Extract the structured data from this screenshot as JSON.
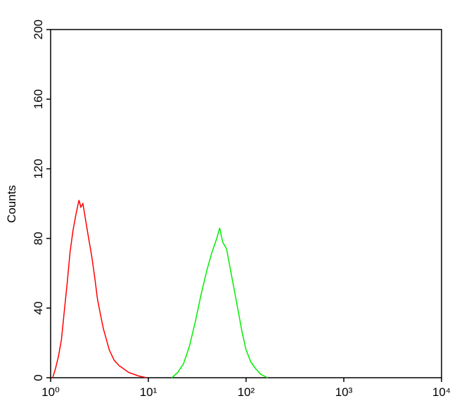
{
  "chart_data": {
    "type": "histogram-line",
    "y_label": "Counts",
    "xscale": "log",
    "xlim": [
      1,
      10000
    ],
    "xticks": [
      {
        "value": 1,
        "label": "10⁰"
      },
      {
        "value": 10,
        "label": "10¹"
      },
      {
        "value": 100,
        "label": "10²"
      },
      {
        "value": 1000,
        "label": "10³"
      },
      {
        "value": 10000,
        "label": "10⁴"
      }
    ],
    "ylim": [
      0,
      200
    ],
    "yticks": [
      0,
      40,
      80,
      120,
      160,
      200
    ],
    "series": [
      {
        "color": "#ff0000",
        "x": [
          1.05,
          1.12,
          1.2,
          1.29,
          1.38,
          1.48,
          1.58,
          1.7,
          1.82,
          1.95,
          2.04,
          2.14,
          2.29,
          2.45,
          2.63,
          2.82,
          3.02,
          3.24,
          3.47,
          3.72,
          3.98,
          4.47,
          5.01,
          5.62,
          6.31,
          7.08,
          7.94,
          9.55
        ],
        "values": [
          0,
          5,
          12,
          22,
          38,
          55,
          72,
          85,
          94,
          102,
          98,
          100,
          90,
          80,
          70,
          58,
          45,
          36,
          28,
          22,
          16,
          10,
          7,
          5,
          3,
          2,
          1,
          0
        ]
      },
      {
        "color": "#00ee00",
        "x": [
          17.4,
          20,
          22.9,
          26.3,
          30.2,
          34.7,
          39.8,
          44.7,
          50.1,
          53.7,
          57.5,
          63.1,
          69.2,
          75.9,
          83.2,
          91.2,
          100,
          112,
          126,
          141,
          166
        ],
        "values": [
          0,
          3,
          8,
          18,
          32,
          48,
          62,
          72,
          80,
          86,
          78,
          74,
          62,
          50,
          38,
          26,
          16,
          9,
          5,
          2,
          0
        ]
      }
    ]
  }
}
